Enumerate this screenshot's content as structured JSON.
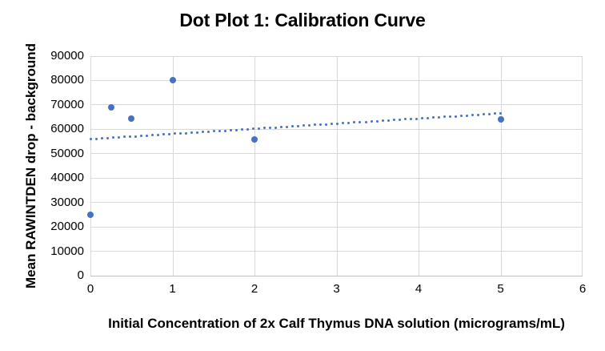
{
  "chart_data": {
    "type": "scatter",
    "title": "Dot Plot 1: Calibration Curve",
    "xlabel": "Initial Concentration of 2x Calf Thymus DNA solution (micrograms/mL)",
    "ylabel": "Mean RAWINTDEN drop - background",
    "xlim": [
      0,
      6
    ],
    "ylim": [
      0,
      90000
    ],
    "x_ticks": [
      0,
      1,
      2,
      3,
      4,
      5,
      6
    ],
    "y_ticks": [
      0,
      10000,
      20000,
      30000,
      40000,
      50000,
      60000,
      70000,
      80000,
      90000
    ],
    "grid": true,
    "legend": false,
    "points": [
      {
        "x": 0,
        "y": 25000
      },
      {
        "x": 0.25,
        "y": 69000
      },
      {
        "x": 0.5,
        "y": 64500
      },
      {
        "x": 1,
        "y": 80000
      },
      {
        "x": 2,
        "y": 56000
      },
      {
        "x": 5,
        "y": 64000
      }
    ],
    "trendline": {
      "style": "dotted",
      "x_start": 0,
      "y_start": 56000,
      "x_end": 5,
      "y_end": 66500
    },
    "colors": {
      "marker": "#4472C4",
      "trendline": "#4472C4",
      "gridline": "#D9D9D9",
      "axis_line": "#BFBFBF",
      "text": "#000000"
    }
  }
}
